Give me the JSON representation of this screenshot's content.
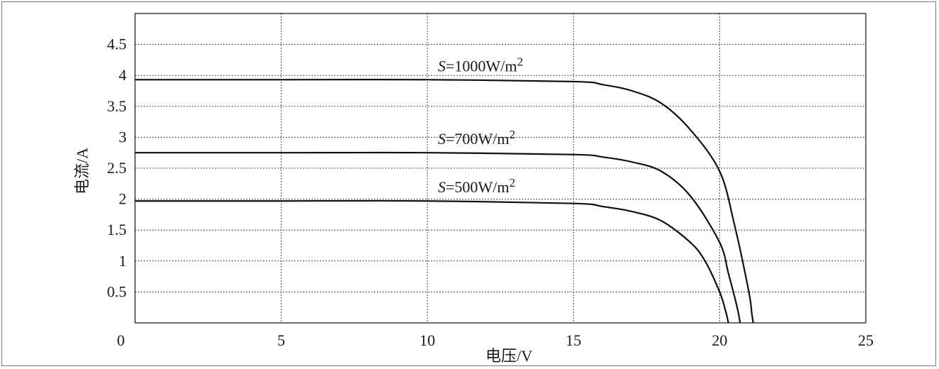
{
  "chart_data": {
    "type": "line",
    "xlabel": "电压/V",
    "ylabel": "电流/A",
    "xlim": [
      0,
      25
    ],
    "ylim": [
      0,
      5
    ],
    "x_ticks": [
      0,
      5,
      10,
      15,
      20,
      25
    ],
    "x_tick_labels": [
      "0",
      "5",
      "10",
      "15",
      "20",
      "25"
    ],
    "y_ticks": [
      0.5,
      1,
      1.5,
      2,
      2.5,
      3,
      3.5,
      4,
      4.5
    ],
    "y_tick_labels": [
      "0.5",
      "1",
      "1.5",
      "2",
      "2.5",
      "3",
      "3.5",
      "4",
      "4.5"
    ],
    "grid": true,
    "series": [
      {
        "label_var": "S",
        "label_rest": "=1000W/m",
        "label_sup": "2",
        "points": [
          [
            0,
            3.93
          ],
          [
            5,
            3.93
          ],
          [
            10,
            3.93
          ],
          [
            15,
            3.9
          ],
          [
            16,
            3.85
          ],
          [
            17,
            3.75
          ],
          [
            18,
            3.55
          ],
          [
            19,
            3.12
          ],
          [
            20,
            2.45
          ],
          [
            20.5,
            1.6
          ],
          [
            21,
            0.5
          ],
          [
            21.1,
            0.15
          ],
          [
            21.15,
            0
          ]
        ]
      },
      {
        "label_var": "S",
        "label_rest": "=700W/m",
        "label_sup": "2",
        "points": [
          [
            0,
            2.75
          ],
          [
            5,
            2.75
          ],
          [
            10,
            2.75
          ],
          [
            15,
            2.72
          ],
          [
            16,
            2.68
          ],
          [
            17,
            2.6
          ],
          [
            18,
            2.45
          ],
          [
            19,
            2.05
          ],
          [
            20,
            1.3
          ],
          [
            20.3,
            0.8
          ],
          [
            20.6,
            0.25
          ],
          [
            20.7,
            0
          ]
        ]
      },
      {
        "label_var": "S",
        "label_rest": "=500W/m",
        "label_sup": "2",
        "points": [
          [
            0,
            1.97
          ],
          [
            5,
            1.97
          ],
          [
            10,
            1.97
          ],
          [
            15,
            1.93
          ],
          [
            16,
            1.88
          ],
          [
            17,
            1.8
          ],
          [
            18,
            1.65
          ],
          [
            19,
            1.3
          ],
          [
            19.5,
            1.0
          ],
          [
            20,
            0.5
          ],
          [
            20.2,
            0.2
          ],
          [
            20.3,
            0
          ]
        ]
      }
    ]
  }
}
